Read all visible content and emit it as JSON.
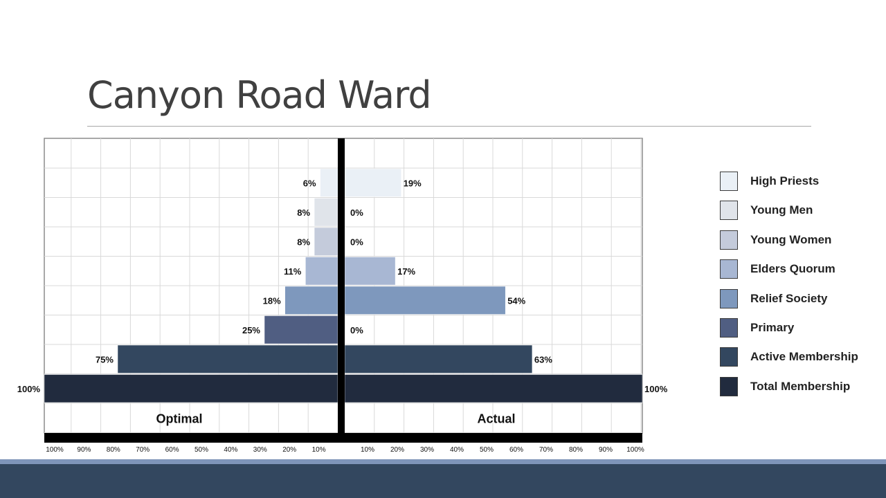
{
  "slide": {
    "title": "Canyon Road Ward"
  },
  "colors": {
    "grid": "#d9d9d9",
    "axis": "#000000",
    "footer": "#33475f",
    "footer_accent": "#7f95b9"
  },
  "chart_data": {
    "type": "bar",
    "orientation": "horizontal-butterfly",
    "categories": [
      "High Priests",
      "Young Men",
      "Young Women",
      "Elders Quorum",
      "Relief Society",
      "Primary",
      "Active Membership",
      "Total Membership"
    ],
    "colors": [
      "#eaf0f6",
      "#e0e4ea",
      "#c4cbdb",
      "#a8b7d3",
      "#7e98bd",
      "#505e82",
      "#33475f",
      "#212b3e"
    ],
    "series": [
      {
        "name": "Optimal",
        "values": [
          6,
          8,
          8,
          11,
          18,
          25,
          75,
          100
        ]
      },
      {
        "name": "Actual",
        "values": [
          19,
          0,
          0,
          17,
          54,
          0,
          63,
          100
        ]
      }
    ],
    "data_labels": {
      "Optimal": [
        "6%",
        "8%",
        "8%",
        "11%",
        "18%",
        "25%",
        "75%",
        "100%"
      ],
      "Actual": [
        "19%",
        "0%",
        "0%",
        "17%",
        "54%",
        "0%",
        "63%",
        "100%"
      ]
    },
    "x_ticks_left": [
      "100%",
      "90%",
      "80%",
      "70%",
      "60%",
      "50%",
      "40%",
      "30%",
      "20%",
      "10%"
    ],
    "x_ticks_right": [
      "10%",
      "20%",
      "30%",
      "40%",
      "50%",
      "60%",
      "70%",
      "80%",
      "90%",
      "100%"
    ],
    "xlim": [
      0,
      100
    ],
    "grid": true,
    "legend": "right"
  }
}
